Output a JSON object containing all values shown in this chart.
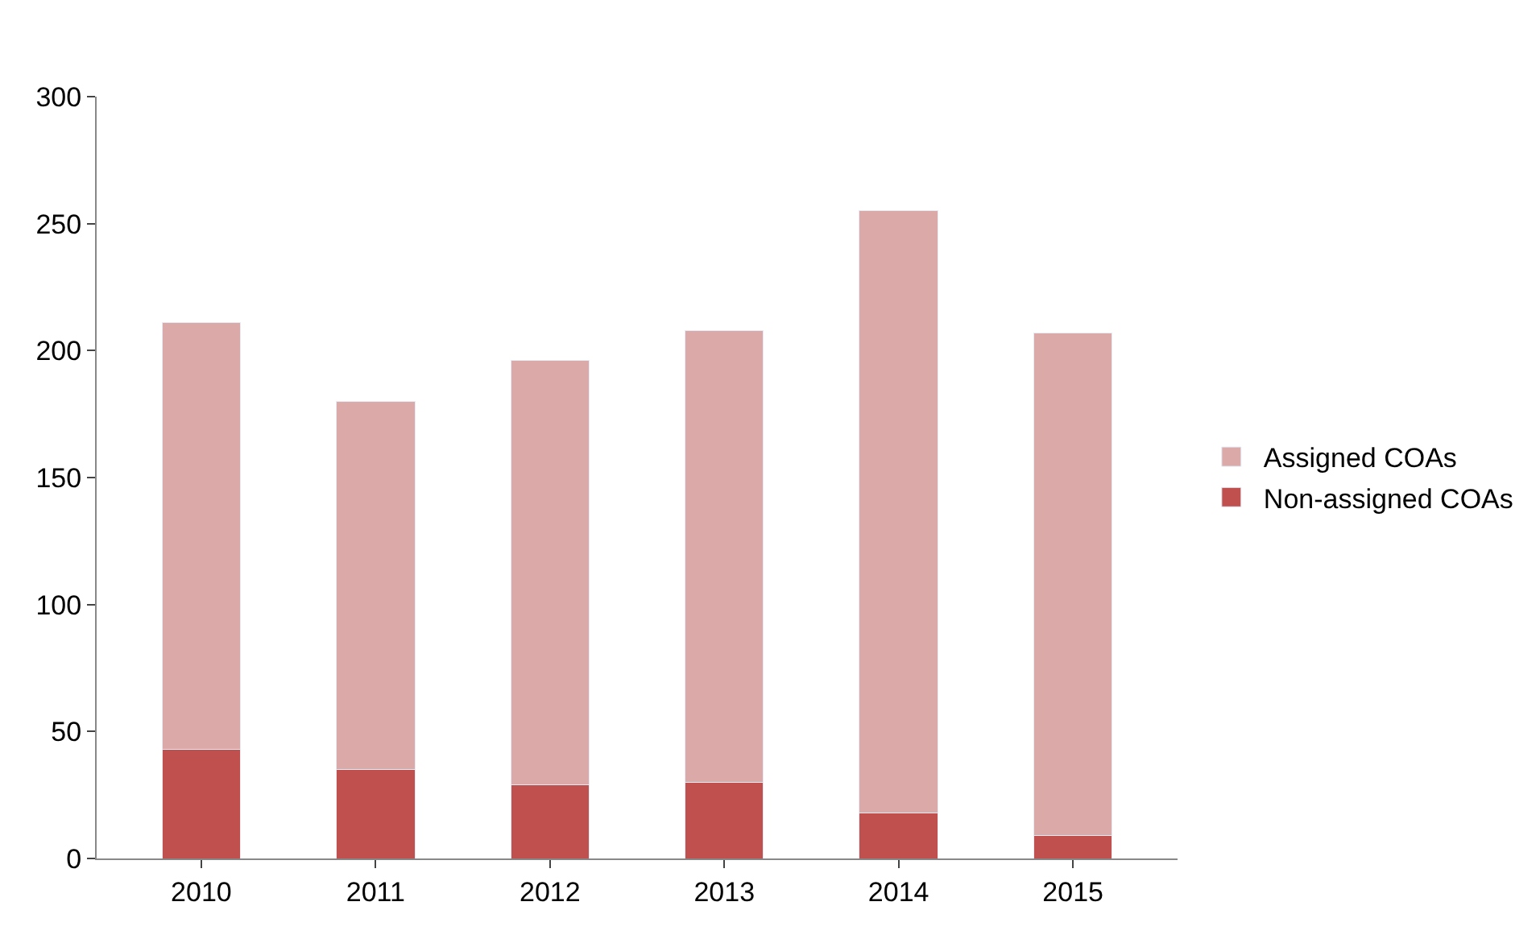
{
  "chart_data": {
    "type": "bar",
    "stacked": true,
    "categories": [
      "2010",
      "2011",
      "2012",
      "2013",
      "2014",
      "2015"
    ],
    "series": [
      {
        "name": "Non-assigned COAs",
        "color": "#c0504d",
        "values": [
          43,
          35,
          29,
          30,
          18,
          9
        ]
      },
      {
        "name": "Assigned COAs",
        "color": "#dba9a8",
        "values": [
          168,
          145,
          167,
          178,
          237,
          198
        ]
      }
    ],
    "ylim": [
      0,
      300
    ],
    "yticks": [
      0,
      50,
      100,
      150,
      200,
      250,
      300
    ],
    "grid": false,
    "legend": "right"
  }
}
